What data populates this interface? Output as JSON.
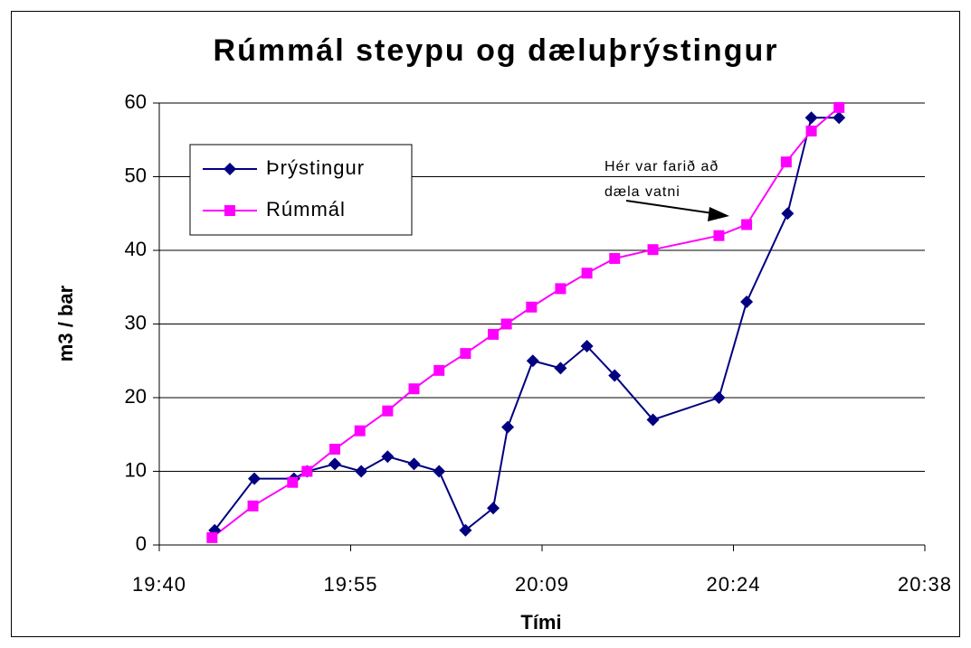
{
  "chart_data": {
    "type": "line",
    "title": "Rúmmál steypu og dæluþrýstingur",
    "xlabel": "Tími",
    "ylabel": "m3 / bar",
    "xlim": [
      1180,
      1238
    ],
    "xticks": [
      {
        "value": 1180,
        "label": "19:40"
      },
      {
        "value": 1194.5,
        "label": "19:55"
      },
      {
        "value": 1209,
        "label": "20:09"
      },
      {
        "value": 1223.5,
        "label": "20:24"
      },
      {
        "value": 1238,
        "label": "20:38"
      }
    ],
    "ylim": [
      0,
      60
    ],
    "yticks": [
      0,
      10,
      20,
      30,
      40,
      50,
      60
    ],
    "grid": true,
    "legend": "upper left",
    "annotation": [
      "Hér var farið að",
      "dæla vatni"
    ],
    "series": [
      {
        "name": "Þrýstingur",
        "color": "#000080",
        "marker": "diamond",
        "x": [
          1184.2,
          1187.2,
          1190.2,
          1191.2,
          1193.3,
          1195.3,
          1197.3,
          1199.3,
          1201.2,
          1203.2,
          1205.3,
          1206.4,
          1208.3,
          1210.4,
          1212.4,
          1214.5,
          1217.4,
          1222.4,
          1224.5,
          1227.6,
          1229.4,
          1231.5
        ],
        "values": [
          2,
          9,
          9,
          10,
          11,
          10,
          12,
          11,
          10,
          2,
          5,
          16,
          25,
          24,
          27,
          23,
          17,
          20,
          33,
          45,
          58,
          58
        ]
      },
      {
        "name": "Rúmmál",
        "color": "#ff00ff",
        "marker": "square",
        "x": [
          1184.0,
          1187.1,
          1190.1,
          1191.2,
          1193.3,
          1195.2,
          1197.3,
          1199.3,
          1201.2,
          1203.2,
          1205.3,
          1206.3,
          1208.2,
          1210.4,
          1212.4,
          1214.5,
          1217.4,
          1222.4,
          1224.5,
          1227.5,
          1229.4,
          1231.5
        ],
        "values": [
          1,
          5.3,
          8.5,
          10,
          13,
          15.5,
          18.2,
          21.2,
          23.7,
          26,
          28.6,
          30,
          32.3,
          34.8,
          36.9,
          38.9,
          40.1,
          42,
          43.5,
          52,
          56.2,
          59.4
        ]
      }
    ]
  }
}
